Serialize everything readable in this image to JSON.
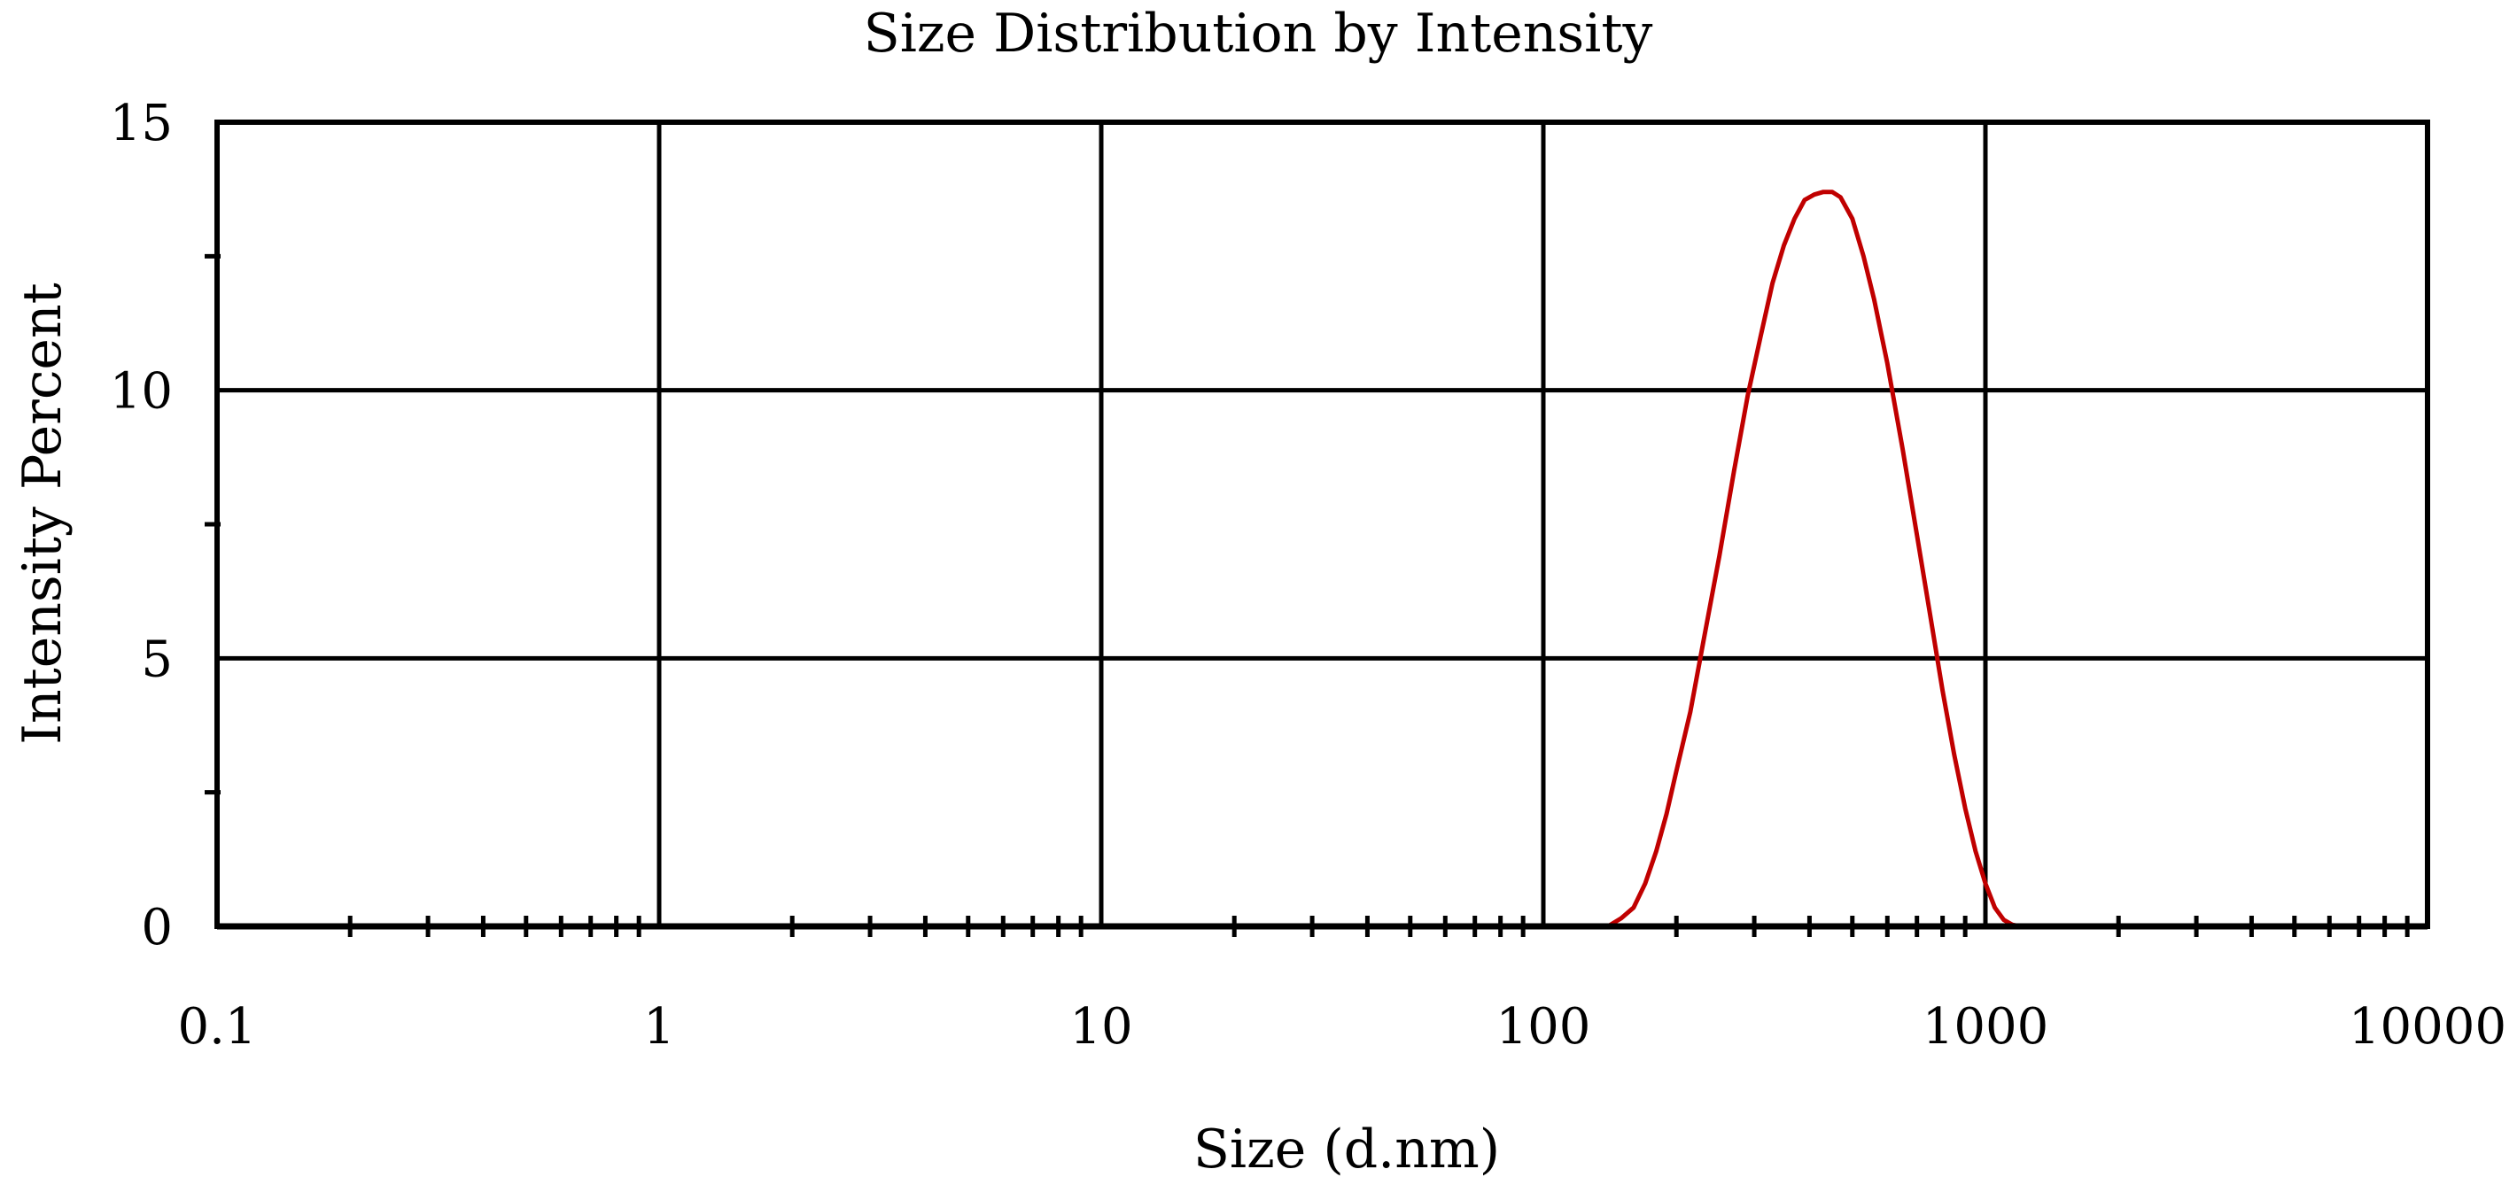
{
  "chart_data": {
    "type": "line",
    "title": "Size Distribution by Intensity",
    "xlabel": "Size (d.nm)",
    "ylabel": "Intensity Percent",
    "x_scale": "log",
    "xlim": [
      0.1,
      10000
    ],
    "ylim": [
      0,
      15
    ],
    "x_ticks": [
      "0.1",
      "1",
      "10",
      "100",
      "1000",
      "10000"
    ],
    "y_ticks": [
      "0",
      "5",
      "10",
      "15"
    ],
    "grid": true,
    "legend": "none",
    "colors": {
      "series": "#c00000",
      "axes": "#000000",
      "grid": "#000000"
    },
    "series": [
      {
        "x": [
          0.4,
          1,
          10,
          100,
          140,
          150,
          160,
          170,
          180,
          190,
          200,
          215,
          230,
          250,
          270,
          290,
          310,
          330,
          350,
          370,
          390,
          410,
          430,
          450,
          470,
          500,
          530,
          560,
          600,
          650,
          700,
          750,
          800,
          850,
          900,
          950,
          1000,
          1050,
          1100,
          1150,
          1200,
          1300,
          2000,
          5000,
          10000
        ],
        "values": [
          0,
          0,
          0,
          0,
          0,
          0.15,
          0.35,
          0.8,
          1.4,
          2.1,
          2.9,
          4.0,
          5.3,
          6.9,
          8.5,
          9.9,
          11.0,
          12.0,
          12.7,
          13.2,
          13.55,
          13.65,
          13.7,
          13.7,
          13.6,
          13.2,
          12.5,
          11.7,
          10.5,
          8.9,
          7.3,
          5.8,
          4.4,
          3.2,
          2.2,
          1.4,
          0.8,
          0.35,
          0.12,
          0.03,
          0,
          0,
          0,
          0,
          0
        ]
      }
    ]
  }
}
